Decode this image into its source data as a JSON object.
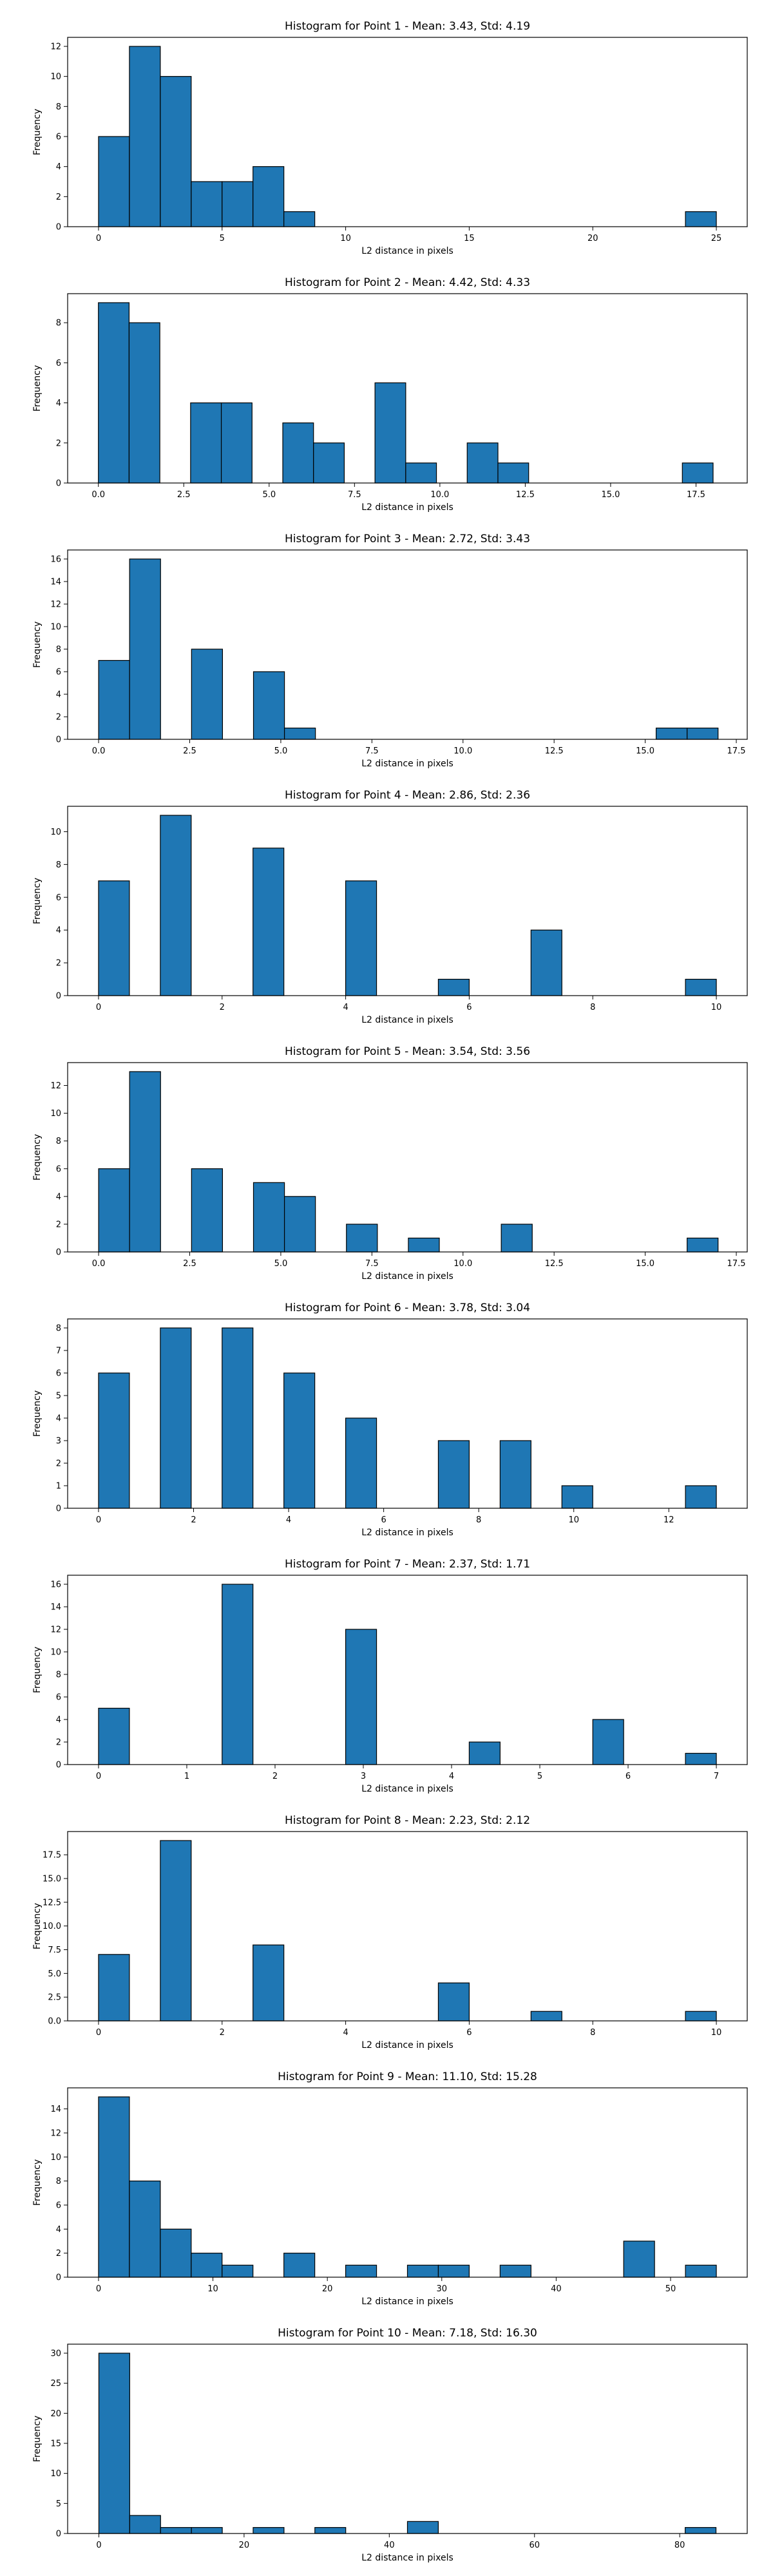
{
  "chart_data": [
    {
      "type": "bar",
      "title": "Histogram for Point 1 - Mean: 3.43, Std: 4.19",
      "xlabel": "L2 distance in pixels",
      "ylabel": "Frequency",
      "xlim": [
        -1.25,
        26.25
      ],
      "ylim": [
        0,
        12.6
      ],
      "xticks": [
        0,
        5,
        10,
        15,
        20,
        25
      ],
      "xtick_labels": [
        "0",
        "5",
        "10",
        "15",
        "20",
        "25"
      ],
      "yticks": [
        0,
        2,
        4,
        6,
        8,
        10,
        12
      ],
      "ytick_labels": [
        "0",
        "2",
        "4",
        "6",
        "8",
        "10",
        "12"
      ],
      "bin_width": 1.25,
      "bins": [
        [
          0,
          6
        ],
        [
          1.25,
          12
        ],
        [
          2.5,
          10
        ],
        [
          3.75,
          3
        ],
        [
          5.0,
          3
        ],
        [
          6.25,
          4
        ],
        [
          7.5,
          1
        ],
        [
          23.75,
          1
        ]
      ]
    },
    {
      "type": "bar",
      "title": "Histogram for Point 2 - Mean: 4.42, Std: 4.33",
      "xlabel": "L2 distance in pixels",
      "ylabel": "Frequency",
      "xlim": [
        -0.9,
        19.0
      ],
      "ylim": [
        0,
        9.45
      ],
      "xticks": [
        0,
        2.5,
        5,
        7.5,
        10,
        12.5,
        15,
        17.5
      ],
      "xtick_labels": [
        "0.0",
        "2.5",
        "5.0",
        "7.5",
        "10.0",
        "12.5",
        "15.0",
        "17.5"
      ],
      "yticks": [
        0,
        2,
        4,
        6,
        8
      ],
      "ytick_labels": [
        "0",
        "2",
        "4",
        "6",
        "8"
      ],
      "bin_width": 0.9,
      "bins": [
        [
          0,
          9
        ],
        [
          0.9,
          8
        ],
        [
          2.7,
          4
        ],
        [
          3.6,
          4
        ],
        [
          5.4,
          3
        ],
        [
          6.3,
          2
        ],
        [
          8.1,
          5
        ],
        [
          9.0,
          1
        ],
        [
          10.8,
          2
        ],
        [
          11.7,
          1
        ],
        [
          17.1,
          1
        ]
      ]
    },
    {
      "type": "bar",
      "title": "Histogram for Point 3 - Mean: 2.72, Std: 3.43",
      "xlabel": "L2 distance in pixels",
      "ylabel": "Frequency",
      "xlim": [
        -0.85,
        17.8
      ],
      "ylim": [
        0,
        16.8
      ],
      "xticks": [
        0,
        2.5,
        5,
        7.5,
        10,
        12.5,
        15,
        17.5
      ],
      "xtick_labels": [
        "0.0",
        "2.5",
        "5.0",
        "7.5",
        "10.0",
        "12.5",
        "15.0",
        "17.5"
      ],
      "yticks": [
        0,
        2,
        4,
        6,
        8,
        10,
        12,
        14,
        16
      ],
      "ytick_labels": [
        "0",
        "2",
        "4",
        "6",
        "8",
        "10",
        "12",
        "14",
        "16"
      ],
      "bin_width": 0.85,
      "bins": [
        [
          0,
          7
        ],
        [
          0.85,
          16
        ],
        [
          2.55,
          8
        ],
        [
          4.25,
          6
        ],
        [
          5.1,
          1
        ],
        [
          15.3,
          1
        ],
        [
          16.15,
          1
        ]
      ]
    },
    {
      "type": "bar",
      "title": "Histogram for Point 4 - Mean: 2.86, Std: 2.36",
      "xlabel": "L2 distance in pixels",
      "ylabel": "Frequency",
      "xlim": [
        -0.5,
        10.5
      ],
      "ylim": [
        0,
        11.55
      ],
      "xticks": [
        0,
        2,
        4,
        6,
        8,
        10
      ],
      "xtick_labels": [
        "0",
        "2",
        "4",
        "6",
        "8",
        "10"
      ],
      "yticks": [
        0,
        2,
        4,
        6,
        8,
        10
      ],
      "ytick_labels": [
        "0",
        "2",
        "4",
        "6",
        "8",
        "10"
      ],
      "bin_width": 0.5,
      "bins": [
        [
          0,
          7
        ],
        [
          1.0,
          11
        ],
        [
          2.5,
          9
        ],
        [
          4.0,
          7
        ],
        [
          5.5,
          1
        ],
        [
          7.0,
          4
        ],
        [
          9.5,
          1
        ]
      ]
    },
    {
      "type": "bar",
      "title": "Histogram for Point 5 - Mean: 3.54, Std: 3.56",
      "xlabel": "L2 distance in pixels",
      "ylabel": "Frequency",
      "xlim": [
        -0.85,
        17.8
      ],
      "ylim": [
        0,
        13.65
      ],
      "xticks": [
        0,
        2.5,
        5,
        7.5,
        10,
        12.5,
        15,
        17.5
      ],
      "xtick_labels": [
        "0.0",
        "2.5",
        "5.0",
        "7.5",
        "10.0",
        "12.5",
        "15.0",
        "17.5"
      ],
      "yticks": [
        0,
        2,
        4,
        6,
        8,
        10,
        12
      ],
      "ytick_labels": [
        "0",
        "2",
        "4",
        "6",
        "8",
        "10",
        "12"
      ],
      "bin_width": 0.85,
      "bins": [
        [
          0,
          6
        ],
        [
          0.85,
          13
        ],
        [
          2.55,
          6
        ],
        [
          4.25,
          5
        ],
        [
          5.1,
          4
        ],
        [
          6.8,
          2
        ],
        [
          8.5,
          1
        ],
        [
          11.05,
          2
        ],
        [
          16.15,
          1
        ]
      ]
    },
    {
      "type": "bar",
      "title": "Histogram for Point 6 - Mean: 3.78, Std: 3.04",
      "xlabel": "L2 distance in pixels",
      "ylabel": "Frequency",
      "xlim": [
        -0.65,
        13.65
      ],
      "ylim": [
        0,
        8.4
      ],
      "xticks": [
        0,
        2,
        4,
        6,
        8,
        10,
        12
      ],
      "xtick_labels": [
        "0",
        "2",
        "4",
        "6",
        "8",
        "10",
        "12"
      ],
      "yticks": [
        0,
        1,
        2,
        3,
        4,
        5,
        6,
        7,
        8
      ],
      "ytick_labels": [
        "0",
        "1",
        "2",
        "3",
        "4",
        "5",
        "6",
        "7",
        "8"
      ],
      "bin_width": 0.65,
      "bins": [
        [
          0,
          6
        ],
        [
          1.3,
          8
        ],
        [
          2.6,
          8
        ],
        [
          3.9,
          6
        ],
        [
          5.2,
          4
        ],
        [
          7.15,
          3
        ],
        [
          8.45,
          3
        ],
        [
          9.75,
          1
        ],
        [
          12.35,
          1
        ]
      ]
    },
    {
      "type": "bar",
      "title": "Histogram for Point 7 - Mean: 2.37, Std: 1.71",
      "xlabel": "L2 distance in pixels",
      "ylabel": "Frequency",
      "xlim": [
        -0.35,
        7.35
      ],
      "ylim": [
        0,
        16.8
      ],
      "xticks": [
        0,
        1,
        2,
        3,
        4,
        5,
        6,
        7
      ],
      "xtick_labels": [
        "0",
        "1",
        "2",
        "3",
        "4",
        "5",
        "6",
        "7"
      ],
      "yticks": [
        0,
        2,
        4,
        6,
        8,
        10,
        12,
        14,
        16
      ],
      "ytick_labels": [
        "0",
        "2",
        "4",
        "6",
        "8",
        "10",
        "12",
        "14",
        "16"
      ],
      "bin_width": 0.35,
      "bins": [
        [
          0,
          5
        ],
        [
          1.4,
          16
        ],
        [
          2.8,
          12
        ],
        [
          4.2,
          2
        ],
        [
          5.6,
          4
        ],
        [
          6.65,
          1
        ]
      ]
    },
    {
      "type": "bar",
      "title": "Histogram for Point 8 - Mean: 2.23, Std: 2.12",
      "xlabel": "L2 distance in pixels",
      "ylabel": "Frequency",
      "xlim": [
        -0.5,
        10.5
      ],
      "ylim": [
        0,
        19.95
      ],
      "xticks": [
        0,
        2,
        4,
        6,
        8,
        10
      ],
      "xtick_labels": [
        "0",
        "2",
        "4",
        "6",
        "8",
        "10"
      ],
      "yticks": [
        0,
        2.5,
        5,
        7.5,
        10,
        12.5,
        15,
        17.5
      ],
      "ytick_labels": [
        "0.0",
        "2.5",
        "5.0",
        "7.5",
        "10.0",
        "12.5",
        "15.0",
        "17.5"
      ],
      "bin_width": 0.5,
      "bins": [
        [
          0,
          7
        ],
        [
          1.0,
          19
        ],
        [
          2.5,
          8
        ],
        [
          5.5,
          4
        ],
        [
          7.0,
          1
        ],
        [
          9.5,
          1
        ]
      ]
    },
    {
      "type": "bar",
      "title": "Histogram for Point 9 - Mean: 11.10, Std: 15.28",
      "xlabel": "L2 distance in pixels",
      "ylabel": "Frequency",
      "xlim": [
        -2.7,
        56.7
      ],
      "ylim": [
        0,
        15.75
      ],
      "xticks": [
        0,
        10,
        20,
        30,
        40,
        50
      ],
      "xtick_labels": [
        "0",
        "10",
        "20",
        "30",
        "40",
        "50"
      ],
      "yticks": [
        0,
        2,
        4,
        6,
        8,
        10,
        12,
        14
      ],
      "ytick_labels": [
        "0",
        "2",
        "4",
        "6",
        "8",
        "10",
        "12",
        "14"
      ],
      "bin_width": 2.7,
      "bins": [
        [
          0,
          15
        ],
        [
          2.7,
          8
        ],
        [
          5.4,
          4
        ],
        [
          8.1,
          2
        ],
        [
          10.8,
          1
        ],
        [
          16.2,
          2
        ],
        [
          21.6,
          1
        ],
        [
          27.0,
          1
        ],
        [
          29.7,
          1
        ],
        [
          35.1,
          1
        ],
        [
          45.9,
          3
        ],
        [
          51.3,
          1
        ]
      ]
    },
    {
      "type": "bar",
      "title": "Histogram for Point 10 - Mean: 7.18, Std: 16.30",
      "xlabel": "L2 distance in pixels",
      "ylabel": "Frequency",
      "xlim": [
        -4.3,
        89.3
      ],
      "ylim": [
        0,
        31.5
      ],
      "xticks": [
        0,
        20,
        40,
        60,
        80
      ],
      "xtick_labels": [
        "0",
        "20",
        "40",
        "60",
        "80"
      ],
      "yticks": [
        0,
        5,
        10,
        15,
        20,
        25,
        30
      ],
      "ytick_labels": [
        "0",
        "5",
        "10",
        "15",
        "20",
        "25",
        "30"
      ],
      "bin_width": 4.25,
      "bins": [
        [
          0,
          30
        ],
        [
          4.25,
          3
        ],
        [
          8.5,
          1
        ],
        [
          12.75,
          1
        ],
        [
          21.25,
          1
        ],
        [
          29.75,
          1
        ],
        [
          42.5,
          2
        ],
        [
          80.75,
          1
        ]
      ]
    }
  ],
  "colors": {
    "bar_fill": "#1f77b4",
    "bar_edge": "#000000",
    "axes": "#000000",
    "background": "#ffffff"
  }
}
